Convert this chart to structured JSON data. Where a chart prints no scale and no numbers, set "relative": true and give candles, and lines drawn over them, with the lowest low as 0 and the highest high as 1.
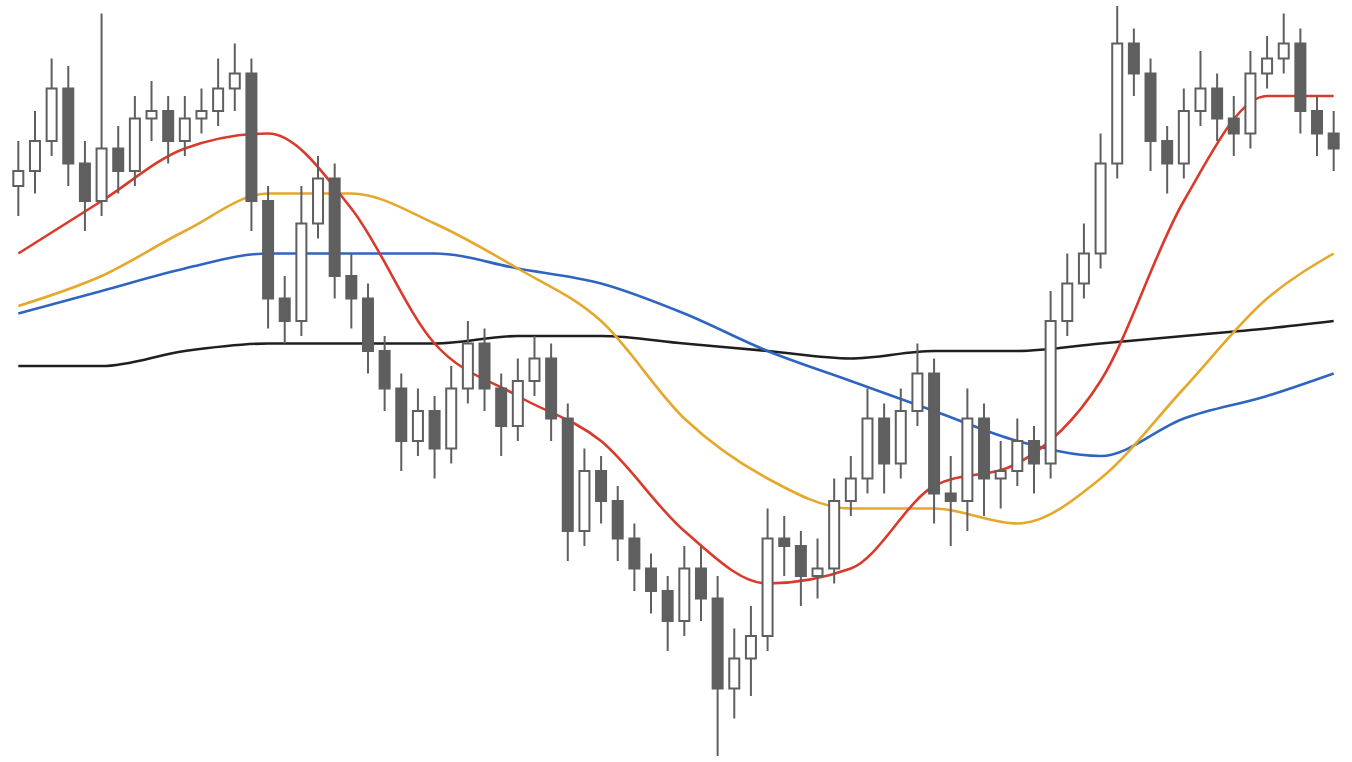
{
  "chart_data": {
    "type": "candlestick",
    "relative": true,
    "color": "#5f5f5f",
    "categories": [
      null,
      null,
      null,
      null,
      null,
      null,
      null,
      null,
      null,
      null,
      null,
      null,
      null,
      null,
      null,
      null,
      null,
      null,
      null,
      null,
      null,
      null,
      null,
      null,
      null,
      null,
      null,
      null,
      null,
      null,
      null,
      null,
      null,
      null,
      null,
      null,
      null,
      null,
      null,
      null,
      null,
      null,
      null,
      null,
      null,
      null,
      null,
      null,
      null,
      null,
      null,
      null,
      null,
      null,
      null,
      null,
      null,
      null,
      null,
      null,
      null,
      null,
      null,
      null,
      null,
      null,
      null,
      null,
      null,
      null,
      null,
      null,
      null,
      null,
      null,
      null,
      null,
      null,
      null,
      null
    ],
    "ohlc": [
      [
        0.76,
        0.82,
        0.72,
        0.78
      ],
      [
        0.78,
        0.86,
        0.75,
        0.82
      ],
      [
        0.82,
        0.93,
        0.8,
        0.89
      ],
      [
        0.89,
        0.92,
        0.76,
        0.79
      ],
      [
        0.79,
        0.82,
        0.7,
        0.74
      ],
      [
        0.74,
        0.99,
        0.72,
        0.81
      ],
      [
        0.81,
        0.84,
        0.75,
        0.78
      ],
      [
        0.78,
        0.88,
        0.76,
        0.85
      ],
      [
        0.85,
        0.9,
        0.82,
        0.86
      ],
      [
        0.86,
        0.88,
        0.79,
        0.82
      ],
      [
        0.82,
        0.88,
        0.8,
        0.85
      ],
      [
        0.85,
        0.89,
        0.83,
        0.86
      ],
      [
        0.86,
        0.93,
        0.84,
        0.89
      ],
      [
        0.89,
        0.95,
        0.86,
        0.91
      ],
      [
        0.91,
        0.93,
        0.7,
        0.74
      ],
      [
        0.74,
        0.76,
        0.57,
        0.61
      ],
      [
        0.61,
        0.64,
        0.55,
        0.58
      ],
      [
        0.58,
        0.76,
        0.56,
        0.71
      ],
      [
        0.71,
        0.8,
        0.69,
        0.77
      ],
      [
        0.77,
        0.79,
        0.61,
        0.64
      ],
      [
        0.64,
        0.67,
        0.57,
        0.61
      ],
      [
        0.61,
        0.63,
        0.51,
        0.54
      ],
      [
        0.54,
        0.56,
        0.46,
        0.49
      ],
      [
        0.49,
        0.51,
        0.38,
        0.42
      ],
      [
        0.42,
        0.49,
        0.4,
        0.46
      ],
      [
        0.46,
        0.48,
        0.37,
        0.41
      ],
      [
        0.41,
        0.52,
        0.39,
        0.49
      ],
      [
        0.49,
        0.58,
        0.47,
        0.55
      ],
      [
        0.55,
        0.57,
        0.46,
        0.49
      ],
      [
        0.49,
        0.51,
        0.4,
        0.44
      ],
      [
        0.44,
        0.53,
        0.42,
        0.5
      ],
      [
        0.5,
        0.56,
        0.48,
        0.53
      ],
      [
        0.53,
        0.55,
        0.42,
        0.45
      ],
      [
        0.45,
        0.47,
        0.26,
        0.3
      ],
      [
        0.3,
        0.41,
        0.28,
        0.38
      ],
      [
        0.38,
        0.4,
        0.31,
        0.34
      ],
      [
        0.34,
        0.36,
        0.26,
        0.29
      ],
      [
        0.29,
        0.31,
        0.22,
        0.25
      ],
      [
        0.25,
        0.27,
        0.19,
        0.22
      ],
      [
        0.22,
        0.24,
        0.14,
        0.18
      ],
      [
        0.18,
        0.28,
        0.16,
        0.25
      ],
      [
        0.25,
        0.28,
        0.18,
        0.21
      ],
      [
        0.21,
        0.24,
        0.0,
        0.09
      ],
      [
        0.09,
        0.17,
        0.05,
        0.13
      ],
      [
        0.13,
        0.2,
        0.08,
        0.16
      ],
      [
        0.16,
        0.33,
        0.14,
        0.29
      ],
      [
        0.29,
        0.32,
        0.24,
        0.28
      ],
      [
        0.28,
        0.3,
        0.2,
        0.24
      ],
      [
        0.24,
        0.29,
        0.21,
        0.25
      ],
      [
        0.25,
        0.37,
        0.23,
        0.34
      ],
      [
        0.34,
        0.4,
        0.32,
        0.37
      ],
      [
        0.37,
        0.49,
        0.35,
        0.45
      ],
      [
        0.45,
        0.47,
        0.35,
        0.39
      ],
      [
        0.39,
        0.49,
        0.37,
        0.46
      ],
      [
        0.46,
        0.55,
        0.44,
        0.51
      ],
      [
        0.51,
        0.53,
        0.31,
        0.35
      ],
      [
        0.35,
        0.4,
        0.28,
        0.34
      ],
      [
        0.34,
        0.49,
        0.3,
        0.45
      ],
      [
        0.45,
        0.47,
        0.32,
        0.37
      ],
      [
        0.37,
        0.42,
        0.33,
        0.38
      ],
      [
        0.38,
        0.45,
        0.36,
        0.42
      ],
      [
        0.42,
        0.44,
        0.35,
        0.39
      ],
      [
        0.39,
        0.62,
        0.37,
        0.58
      ],
      [
        0.58,
        0.67,
        0.56,
        0.63
      ],
      [
        0.63,
        0.71,
        0.61,
        0.67
      ],
      [
        0.67,
        0.83,
        0.65,
        0.79
      ],
      [
        0.79,
        1.0,
        0.77,
        0.95
      ],
      [
        0.95,
        0.97,
        0.88,
        0.91
      ],
      [
        0.91,
        0.93,
        0.78,
        0.82
      ],
      [
        0.82,
        0.84,
        0.75,
        0.79
      ],
      [
        0.79,
        0.89,
        0.77,
        0.86
      ],
      [
        0.86,
        0.94,
        0.84,
        0.89
      ],
      [
        0.89,
        0.91,
        0.82,
        0.85
      ],
      [
        0.85,
        0.88,
        0.8,
        0.83
      ],
      [
        0.83,
        0.94,
        0.81,
        0.91
      ],
      [
        0.91,
        0.96,
        0.89,
        0.93
      ],
      [
        0.93,
        0.99,
        0.91,
        0.95
      ],
      [
        0.95,
        0.97,
        0.83,
        0.86
      ],
      [
        0.86,
        0.88,
        0.8,
        0.83
      ],
      [
        0.83,
        0.86,
        0.78,
        0.81
      ]
    ],
    "series": [
      {
        "type": "line",
        "color": "#1f1f1f",
        "values": [
          0.52,
          null,
          null,
          null,
          null,
          0.52,
          null,
          null,
          null,
          null,
          0.54,
          null,
          null,
          null,
          null,
          0.55,
          null,
          null,
          null,
          null,
          0.55,
          null,
          null,
          null,
          null,
          0.55,
          null,
          null,
          null,
          null,
          0.56,
          null,
          null,
          null,
          null,
          0.56,
          null,
          null,
          null,
          null,
          0.55,
          null,
          null,
          null,
          null,
          0.54,
          null,
          null,
          null,
          null,
          0.53,
          null,
          null,
          null,
          null,
          0.54,
          null,
          null,
          null,
          null,
          0.54,
          null,
          null,
          null,
          null,
          0.55,
          null,
          null,
          null,
          null,
          0.56,
          null,
          null,
          null,
          null,
          0.57,
          null,
          null,
          null,
          0.58
        ]
      },
      {
        "type": "line",
        "color": "#2f65c0",
        "values": [
          0.59,
          null,
          null,
          null,
          null,
          0.62,
          null,
          null,
          null,
          null,
          0.65,
          null,
          null,
          null,
          null,
          0.67,
          null,
          null,
          null,
          null,
          0.67,
          null,
          null,
          null,
          null,
          0.67,
          null,
          null,
          null,
          null,
          0.65,
          null,
          null,
          null,
          null,
          0.63,
          null,
          null,
          null,
          null,
          0.59,
          null,
          null,
          null,
          null,
          0.54,
          null,
          null,
          null,
          null,
          0.5,
          null,
          null,
          null,
          null,
          0.46,
          null,
          null,
          null,
          null,
          0.42,
          null,
          null,
          null,
          null,
          0.4,
          null,
          null,
          null,
          null,
          0.45,
          null,
          null,
          null,
          null,
          0.48,
          null,
          null,
          null,
          0.51
        ]
      },
      {
        "type": "line",
        "color": "#e5a82a",
        "values": [
          0.6,
          null,
          null,
          null,
          null,
          0.64,
          null,
          null,
          null,
          null,
          0.7,
          null,
          null,
          null,
          null,
          0.75,
          null,
          null,
          null,
          null,
          0.75,
          null,
          null,
          null,
          null,
          0.71,
          null,
          null,
          null,
          null,
          0.65,
          null,
          null,
          null,
          null,
          0.58,
          null,
          null,
          null,
          null,
          0.45,
          null,
          null,
          null,
          null,
          0.37,
          null,
          null,
          null,
          null,
          0.33,
          null,
          null,
          null,
          null,
          0.33,
          null,
          null,
          null,
          null,
          0.31,
          null,
          null,
          null,
          null,
          0.37,
          null,
          null,
          null,
          null,
          0.49,
          null,
          null,
          null,
          null,
          0.61,
          null,
          null,
          null,
          0.67
        ]
      },
      {
        "type": "line",
        "color": "#d93a2b",
        "values": [
          0.67,
          null,
          null,
          null,
          null,
          0.74,
          null,
          null,
          null,
          null,
          0.81,
          null,
          null,
          null,
          null,
          0.83,
          null,
          null,
          null,
          null,
          0.73,
          null,
          null,
          null,
          null,
          0.55,
          null,
          null,
          null,
          null,
          0.48,
          null,
          null,
          null,
          null,
          0.42,
          null,
          null,
          null,
          null,
          0.3,
          null,
          null,
          null,
          null,
          0.23,
          null,
          null,
          null,
          null,
          0.25,
          null,
          null,
          null,
          null,
          0.36,
          null,
          null,
          null,
          null,
          0.39,
          null,
          null,
          null,
          null,
          0.5,
          null,
          null,
          null,
          null,
          0.74,
          null,
          null,
          null,
          null,
          0.88,
          null,
          null,
          null,
          0.88
        ]
      }
    ]
  }
}
